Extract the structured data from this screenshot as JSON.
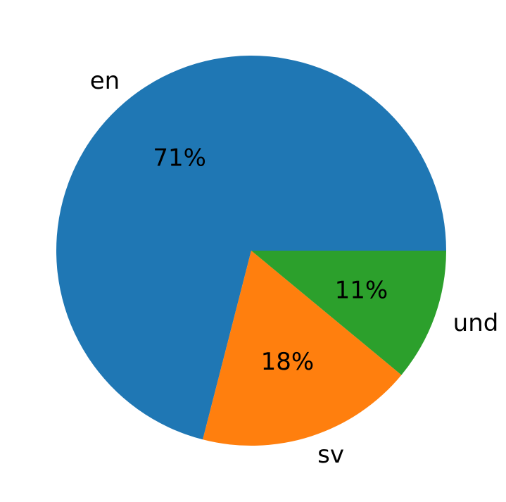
{
  "chart_data": {
    "type": "pie",
    "categories": [
      "en",
      "sv",
      "und"
    ],
    "values": [
      71,
      18,
      11
    ],
    "value_labels": [
      "71%",
      "18%",
      "11%"
    ],
    "colors": [
      "#1f77b4",
      "#ff7f0e",
      "#2ca02c"
    ],
    "start_angle_deg": 0,
    "direction": "counterclockwise"
  }
}
